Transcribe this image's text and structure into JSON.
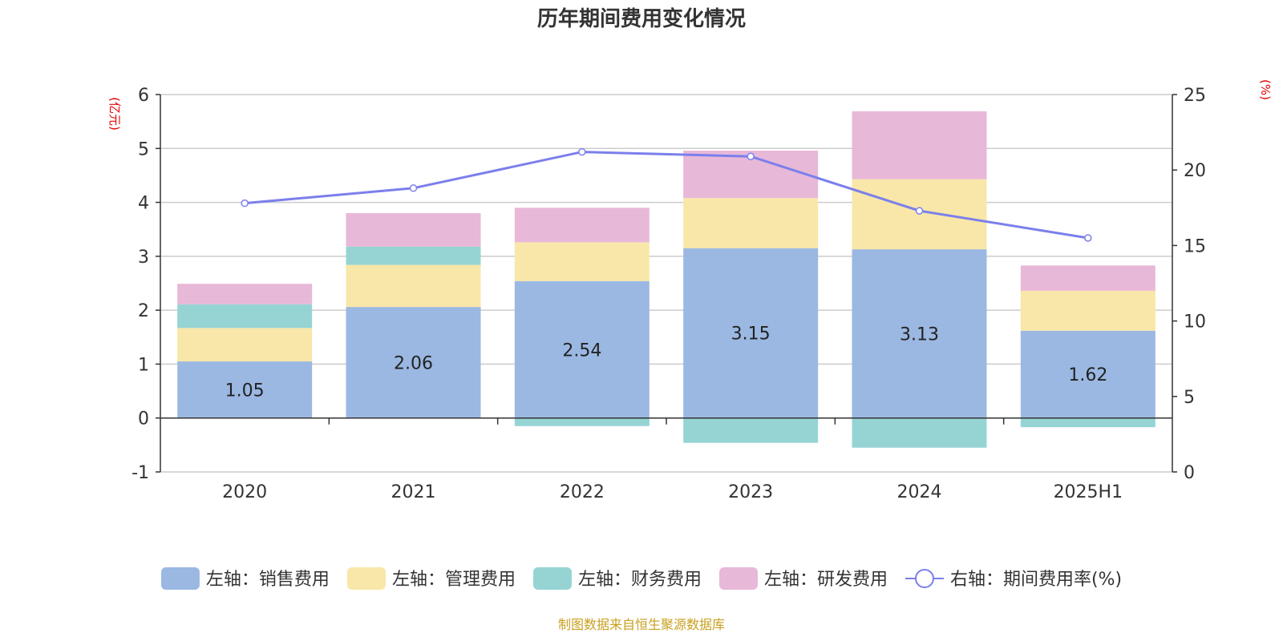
{
  "chart_data": {
    "type": "bar",
    "title": "历年期间费用变化情况",
    "categories": [
      "2020",
      "2021",
      "2022",
      "2023",
      "2024",
      "2025H1"
    ],
    "left_axis": {
      "unit_label": "(亿元)",
      "ylim": [
        -1,
        6
      ],
      "ticks": [
        "-1",
        "0",
        "1",
        "2",
        "3",
        "4",
        "5",
        "6"
      ]
    },
    "right_axis": {
      "unit_label": "(%)",
      "ylim": [
        0,
        25
      ],
      "ticks": [
        "0",
        "5",
        "10",
        "15",
        "20",
        "25"
      ]
    },
    "grid": true,
    "legend_placement": "bottom",
    "stacked": true,
    "series": [
      {
        "name": "左轴：销售费用",
        "axis": "left",
        "type": "bar",
        "color": "#9BB8E2",
        "values": [
          1.05,
          2.06,
          2.54,
          3.15,
          3.13,
          1.62
        ],
        "data_labels": [
          "1.05",
          "2.06",
          "2.54",
          "3.15",
          "3.13",
          "1.62"
        ]
      },
      {
        "name": "左轴：管理费用",
        "axis": "left",
        "type": "bar",
        "color": "#F8E7A8",
        "values": [
          0.62,
          0.78,
          0.72,
          0.93,
          1.3,
          0.74
        ]
      },
      {
        "name": "左轴：财务费用",
        "axis": "left",
        "type": "bar",
        "color": "#96D4D4",
        "values": [
          0.44,
          0.34,
          -0.15,
          -0.46,
          -0.55,
          -0.17
        ]
      },
      {
        "name": "左轴：研发费用",
        "axis": "left",
        "type": "bar",
        "color": "#E8B8D8",
        "values": [
          0.38,
          0.62,
          0.64,
          0.88,
          1.26,
          0.47
        ]
      },
      {
        "name": "右轴：期间费用率(%)",
        "axis": "right",
        "type": "line",
        "color": "#7B7FEB",
        "values": [
          17.8,
          18.8,
          21.2,
          20.9,
          17.3,
          15.5
        ]
      }
    ]
  },
  "footer": {
    "source": "制图数据来自恒生聚源数据库"
  }
}
